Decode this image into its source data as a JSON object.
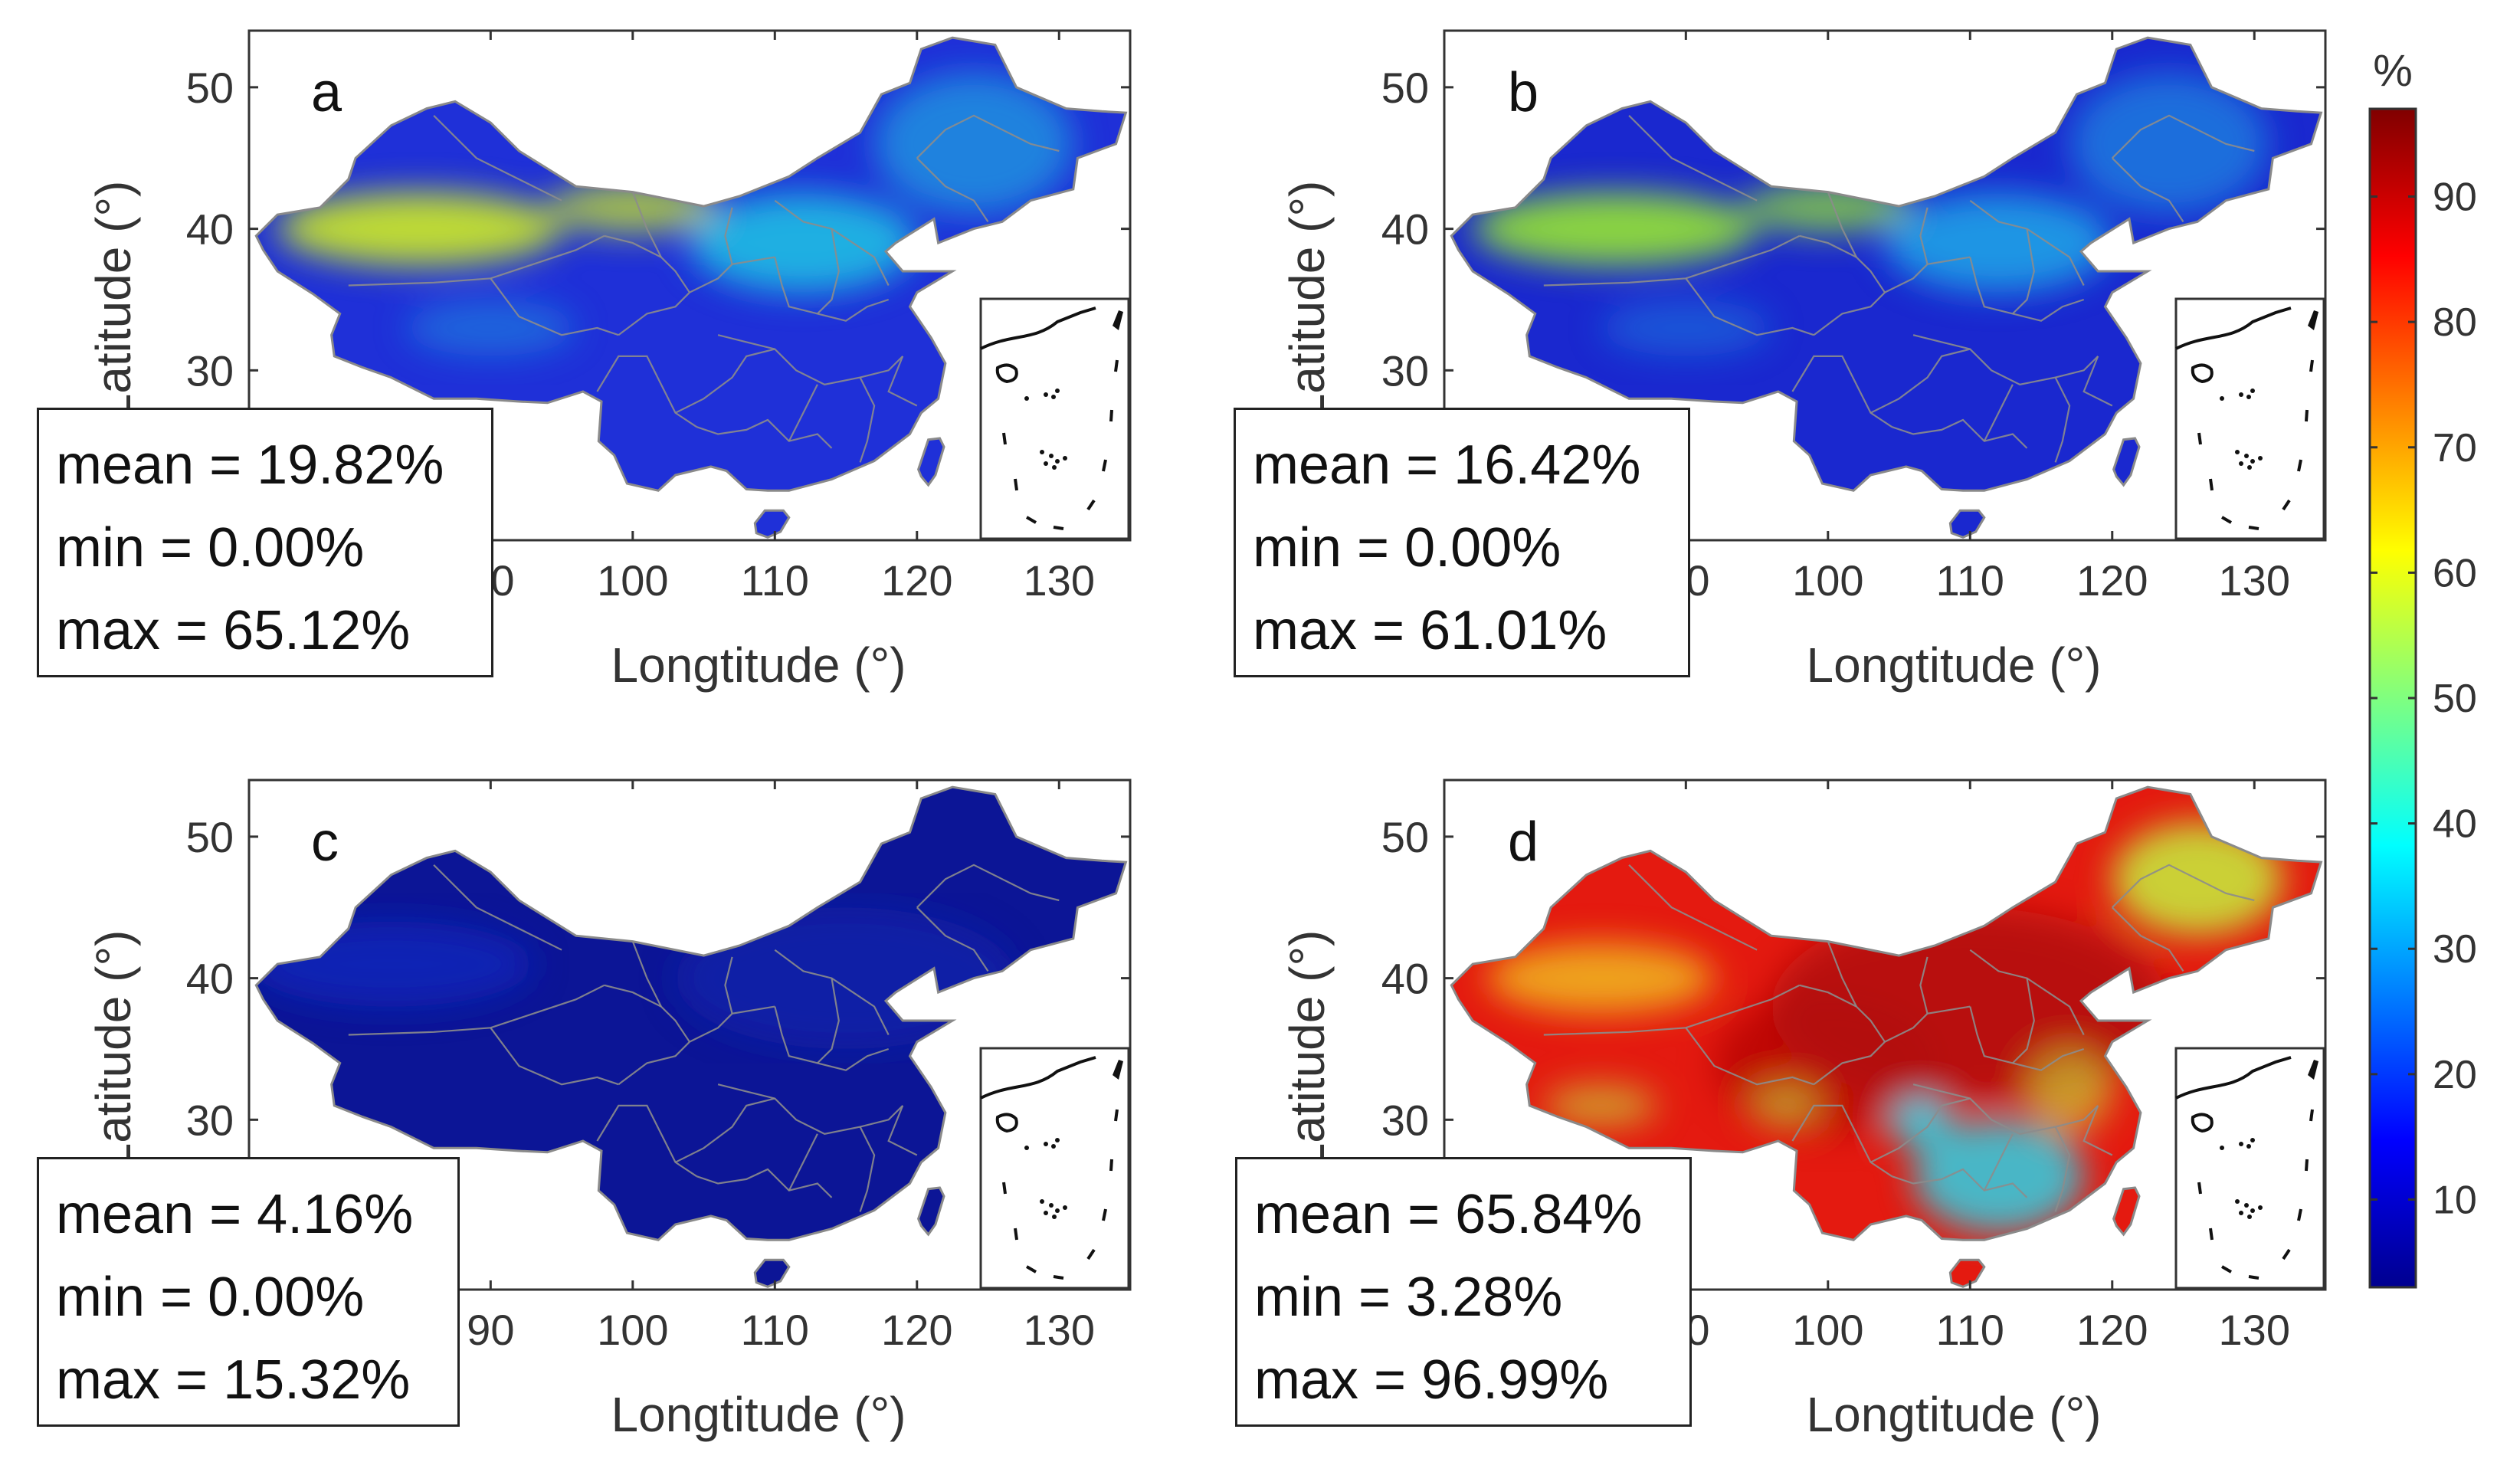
{
  "colorbar": {
    "unit": "%",
    "ticks": [
      10,
      20,
      30,
      40,
      50,
      60,
      70,
      80,
      90
    ],
    "min": 3,
    "max": 97
  },
  "axis": {
    "xlabel": "Longtitude (°)",
    "ylabel": "Latitude (°)",
    "xticks": [
      90,
      100,
      110,
      120,
      130
    ],
    "yticks": [
      30,
      40,
      50
    ],
    "xlim": [
      73,
      135
    ],
    "ylim": [
      18,
      54
    ]
  },
  "panels": [
    {
      "letter": "a",
      "map": "China",
      "stats": {
        "mean": "mean = 19.82%",
        "min": "min = 0.00%",
        "max": "max = 65.12%"
      },
      "colors": {
        "base": "#1f30d8",
        "north": "#22c6e4",
        "desert": "#c6e42a"
      }
    },
    {
      "letter": "b",
      "map": "China",
      "stats": {
        "mean": "mean = 16.42%",
        "min": "min = 0.00%",
        "max": "max = 61.01%"
      },
      "colors": {
        "base": "#1a28cf",
        "north": "#1ea8e8",
        "desert": "#8fdc3a"
      }
    },
    {
      "letter": "c",
      "map": "China",
      "stats": {
        "mean": "mean = 4.16%",
        "min": "min = 0.00%",
        "max": "max = 15.32%"
      },
      "colors": {
        "base": "#0c1596",
        "north": "#1424b0",
        "desert": "#1428bc"
      }
    },
    {
      "letter": "d",
      "map": "China",
      "stats": {
        "mean": "mean = 65.84%",
        "min": "min = 3.28%",
        "max": "max = 96.99%"
      },
      "colors": {
        "base": "#e41a10",
        "north": "#c8e43a",
        "desert": "#f0b020",
        "core": "#b00808",
        "south": "#2ed2e6"
      }
    }
  ]
}
